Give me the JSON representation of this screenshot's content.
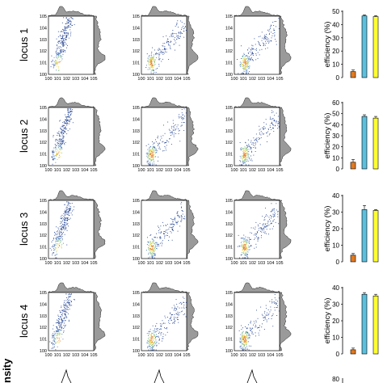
{
  "side_label": "nsity",
  "chart_data": [
    {
      "type": "bar",
      "title": "",
      "row_label": "locus 1",
      "ylabel": "efficiency (%)",
      "yticks": [
        0,
        10,
        20,
        30,
        40,
        50
      ],
      "ylim": [
        0,
        50
      ],
      "values": [
        4.5,
        46.5,
        46.0
      ],
      "errors": [
        1.2,
        0.8,
        0.8
      ],
      "colors": [
        "#e07a22",
        "#5bc0de",
        "#ffff33"
      ],
      "grid": false
    },
    {
      "type": "bar",
      "title": "",
      "row_label": "locus 2",
      "ylabel": "efficiency (%)",
      "yticks": [
        0,
        10,
        20,
        30,
        40,
        50,
        60
      ],
      "ylim": [
        0,
        60
      ],
      "values": [
        6.0,
        47.5,
        46.0
      ],
      "errors": [
        2.5,
        1.5,
        1.5
      ],
      "colors": [
        "#e07a22",
        "#5bc0de",
        "#ffff33"
      ],
      "grid": false
    },
    {
      "type": "bar",
      "title": "",
      "row_label": "locus 3",
      "ylabel": "efficiency (%)",
      "yticks": [
        0,
        10,
        20,
        30,
        40
      ],
      "ylim": [
        0,
        40
      ],
      "values": [
        4.0,
        31.5,
        31.0
      ],
      "errors": [
        1.0,
        2.5,
        0.5
      ],
      "colors": [
        "#e07a22",
        "#5bc0de",
        "#ffff33"
      ],
      "grid": false
    },
    {
      "type": "bar",
      "title": "",
      "row_label": "locus 4",
      "ylabel": "efficiency (%)",
      "yticks": [
        0,
        10,
        20,
        30,
        40
      ],
      "ylim": [
        0,
        40
      ],
      "values": [
        2.5,
        36.0,
        35.0
      ],
      "errors": [
        1.0,
        1.0,
        1.0
      ],
      "colors": [
        "#e07a22",
        "#5bc0de",
        "#ffff33"
      ],
      "grid": false
    },
    {
      "type": "scatter",
      "title": "",
      "description_axes": "log-log density scatter with marginal histograms",
      "xscale": "log",
      "yscale": "log",
      "xlim": [
        1,
        100000
      ],
      "ylim": [
        1,
        100000
      ],
      "xticks": [
        "10^0",
        "10^1",
        "10^2",
        "10^3",
        "10^4",
        "10^5"
      ],
      "yticks": [
        "10^0",
        "10^1",
        "10^2",
        "10^3",
        "10^4",
        "10^5"
      ],
      "panels_per_row": 3,
      "rows": 4,
      "colormap": [
        "#1f3f8f",
        "#3b6fb6",
        "#7fbf7b",
        "#e8d545",
        "#e07a22"
      ]
    }
  ],
  "partial_row": {
    "ytick_visible": "80"
  }
}
